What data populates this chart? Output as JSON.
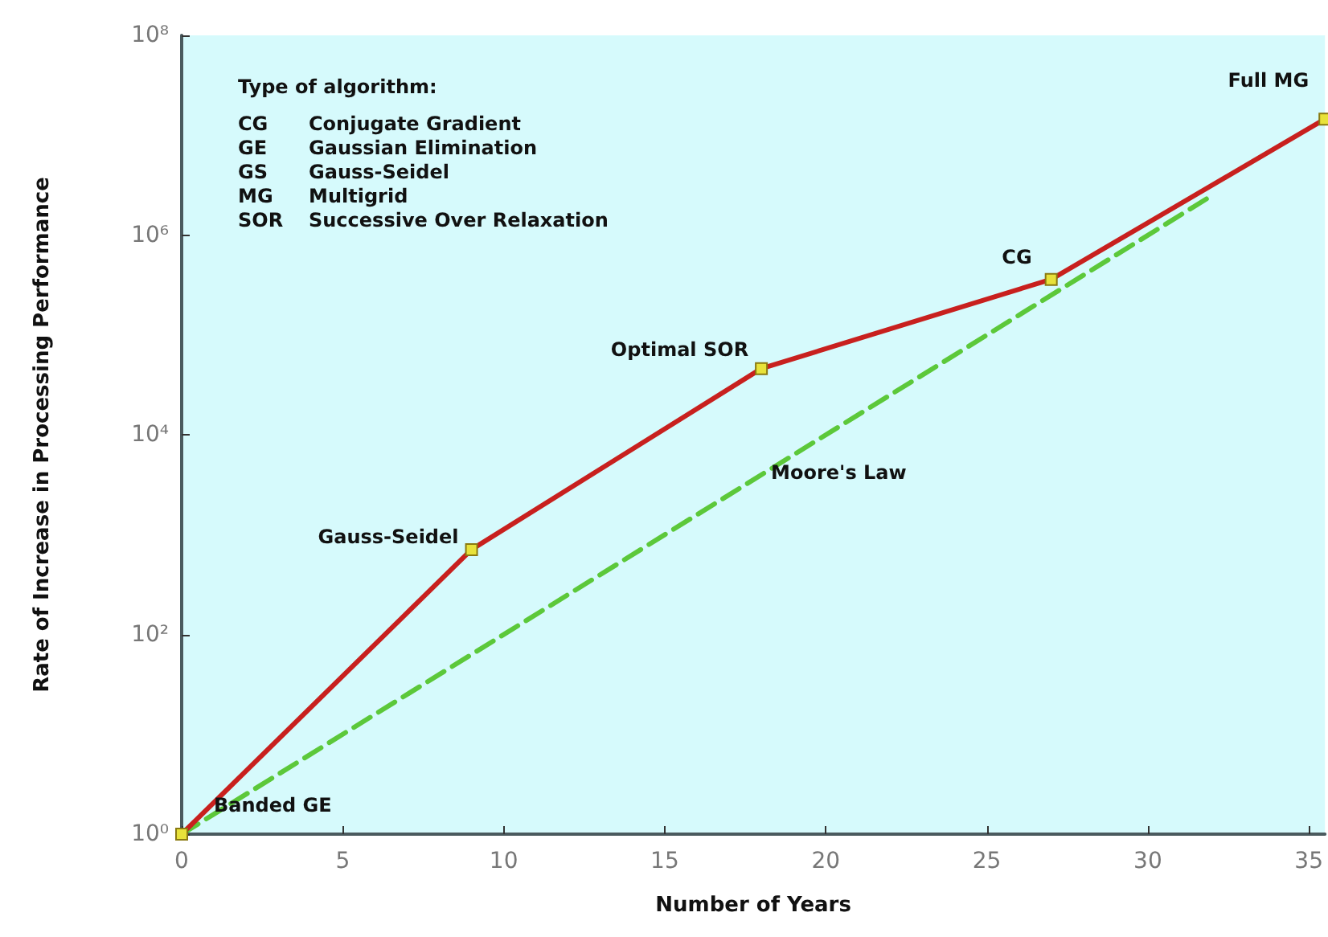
{
  "chart_data": {
    "type": "line",
    "xlabel": "Number of Years",
    "ylabel": "Rate of Increase in Processing Performance",
    "log": "y",
    "xlim": [
      0,
      35.5
    ],
    "xticks": [
      0,
      5,
      10,
      15,
      20,
      25,
      30,
      35
    ],
    "ylim": [
      1,
      100000000
    ],
    "yticks": [
      {
        "value": 1,
        "label": "10⁰"
      },
      {
        "value": 100,
        "label": "10²"
      },
      {
        "value": 10000,
        "label": "10⁴"
      },
      {
        "value": 1000000,
        "label": "10⁶"
      },
      {
        "value": 100000000,
        "label": "10⁸"
      }
    ],
    "grid": false,
    "legend": false,
    "series": [
      {
        "color": "#5cc83a",
        "line_style": "dashed",
        "x": [
          0,
          32
        ],
        "values": [
          1,
          2500000
        ]
      },
      {
        "color": "#c8201e",
        "line_style": "solid",
        "marker": "square",
        "x": [
          0,
          9,
          18,
          27,
          35.5
        ],
        "values": [
          1,
          708,
          46000,
          360000,
          14500000
        ]
      }
    ],
    "annotations": [
      "Type of algorithm:",
      "CG Conjugate Gradient",
      "GE Gaussian Elimination",
      "GS Gauss-Seidel",
      "MG Multigrid",
      "SOR Successive Over Relaxation",
      {
        "text": "Banded GE",
        "x": 0,
        "y": 1
      },
      {
        "text": "Gauss-Seidel",
        "x": 9,
        "y": 708
      },
      {
        "text": "Optimal SOR",
        "x": 18,
        "y": 46000
      },
      {
        "text": "CG",
        "x": 27,
        "y": 360000
      },
      {
        "text": "Full MG",
        "x": 35.5,
        "y": 14500000
      },
      {
        "text": "Moore's Law",
        "x": 17,
        "y": 2500
      }
    ]
  }
}
